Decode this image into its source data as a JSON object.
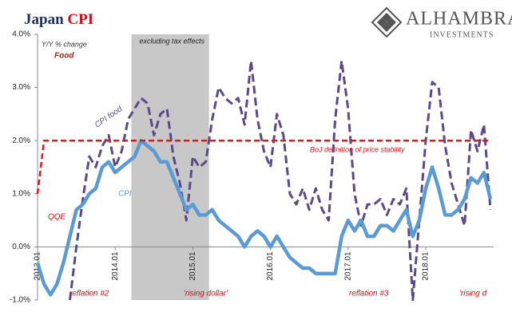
{
  "chart_data": {
    "type": "line",
    "title": {
      "text": "Japan",
      "highlight": "CPI"
    },
    "logo": {
      "name": "ALHAMBRA",
      "tagline": "INVESTMENTS"
    },
    "subtitle": "Y/Y % change",
    "categories": [
      "2013.01",
      null,
      null,
      null,
      null,
      null,
      null,
      null,
      null,
      null,
      null,
      null,
      "2014.01",
      null,
      null,
      null,
      null,
      null,
      null,
      null,
      null,
      null,
      null,
      null,
      "2015.01",
      null,
      null,
      null,
      null,
      null,
      null,
      null,
      null,
      null,
      null,
      null,
      "2016.01",
      null,
      null,
      null,
      null,
      null,
      null,
      null,
      null,
      null,
      null,
      null,
      "2017.01",
      null,
      null,
      null,
      null,
      null,
      null,
      null,
      null,
      null,
      null,
      null,
      "2018.01",
      null,
      null,
      null,
      null,
      null,
      null,
      null,
      null,
      null,
      null
    ],
    "series": [
      {
        "name": "CPI food",
        "color": "#5a4a8a",
        "dashed": true,
        "values": [
          null,
          null,
          null,
          null,
          null,
          -1.0,
          0.0,
          0.9,
          1.7,
          1.5,
          1.9,
          2.1,
          1.5,
          1.8,
          2.4,
          2.6,
          2.8,
          2.7,
          2.1,
          2.5,
          2.6,
          1.7,
          1.2,
          0.5,
          1.7,
          1.5,
          1.6,
          2.4,
          3.0,
          2.8,
          2.7,
          2.8,
          2.3,
          3.5,
          2.4,
          1.8,
          1.5,
          2.5,
          2.1,
          1.0,
          0.8,
          1.1,
          0.7,
          1.1,
          0.7,
          0.5,
          2.4,
          3.5,
          2.6,
          1.0,
          0.4,
          0.8,
          0.8,
          0.9,
          0.6,
          0.9,
          0.8,
          1.1,
          -1.0,
          0.5,
          2.0,
          3.1,
          3.0,
          1.9,
          1.2,
          0.8,
          0.4,
          2.2,
          1.8,
          2.3,
          0.7
        ]
      },
      {
        "name": "CPI",
        "color": "#5b9bd5",
        "dashed": false,
        "values": [
          -0.3,
          -0.7,
          -0.9,
          -0.7,
          -0.3,
          0.2,
          0.7,
          0.8,
          1.0,
          1.1,
          1.5,
          1.6,
          1.4,
          1.5,
          1.6,
          1.7,
          2.0,
          1.9,
          1.8,
          1.6,
          1.6,
          1.3,
          1.0,
          0.7,
          0.8,
          0.6,
          0.6,
          0.7,
          0.5,
          0.4,
          0.3,
          0.2,
          0.0,
          0.2,
          0.3,
          0.2,
          0.0,
          0.2,
          0.0,
          -0.2,
          -0.3,
          -0.4,
          -0.4,
          -0.5,
          -0.5,
          -0.5,
          -0.5,
          0.2,
          0.5,
          0.3,
          0.5,
          0.2,
          0.2,
          0.4,
          0.4,
          0.3,
          0.5,
          0.7,
          0.2,
          0.5,
          1.1,
          1.5,
          1.1,
          0.6,
          0.6,
          0.7,
          0.9,
          1.3,
          1.2,
          1.4,
          0.9
        ]
      },
      {
        "name": "BoJ definition of price stability",
        "color": "#e8141c",
        "dashed": true,
        "values": [
          1.0,
          2.0,
          2.0,
          2.0,
          2.0,
          2.0,
          2.0,
          2.0,
          2.0,
          2.0,
          2.0,
          2.0,
          2.0,
          2.0,
          2.0,
          2.0,
          2.0,
          2.0,
          2.0,
          2.0,
          2.0,
          2.0,
          2.0,
          2.0,
          2.0,
          2.0,
          2.0,
          2.0,
          2.0,
          2.0,
          2.0,
          2.0,
          2.0,
          2.0,
          2.0,
          2.0,
          2.0,
          2.0,
          2.0,
          2.0,
          2.0,
          2.0,
          2.0,
          2.0,
          2.0,
          2.0,
          2.0,
          2.0,
          2.0,
          2.0,
          2.0,
          2.0,
          2.0,
          2.0,
          2.0,
          2.0,
          2.0,
          2.0,
          2.0,
          2.0,
          2.0,
          2.0,
          2.0,
          2.0,
          2.0,
          2.0,
          2.0,
          2.0,
          2.0,
          2.0,
          2.0
        ]
      }
    ],
    "shaded_range": [
      15,
      26
    ],
    "shaded_label": "excluding tax effects",
    "annotations": [
      "Food",
      "QQE",
      "reflation #2",
      "'rising dollar'",
      "reflation #3",
      "'rising d"
    ],
    "ylim": [
      -1,
      4
    ],
    "yticks": [
      {
        "value": 4,
        "label": "4.0%"
      },
      {
        "value": 3,
        "label": "3.0%"
      },
      {
        "value": 2,
        "label": "2.0%"
      },
      {
        "value": 1,
        "label": "1.0%"
      },
      {
        "value": 0,
        "label": "0.0%"
      },
      {
        "value": -1,
        "label": "-1.0%"
      }
    ],
    "grid": false
  }
}
